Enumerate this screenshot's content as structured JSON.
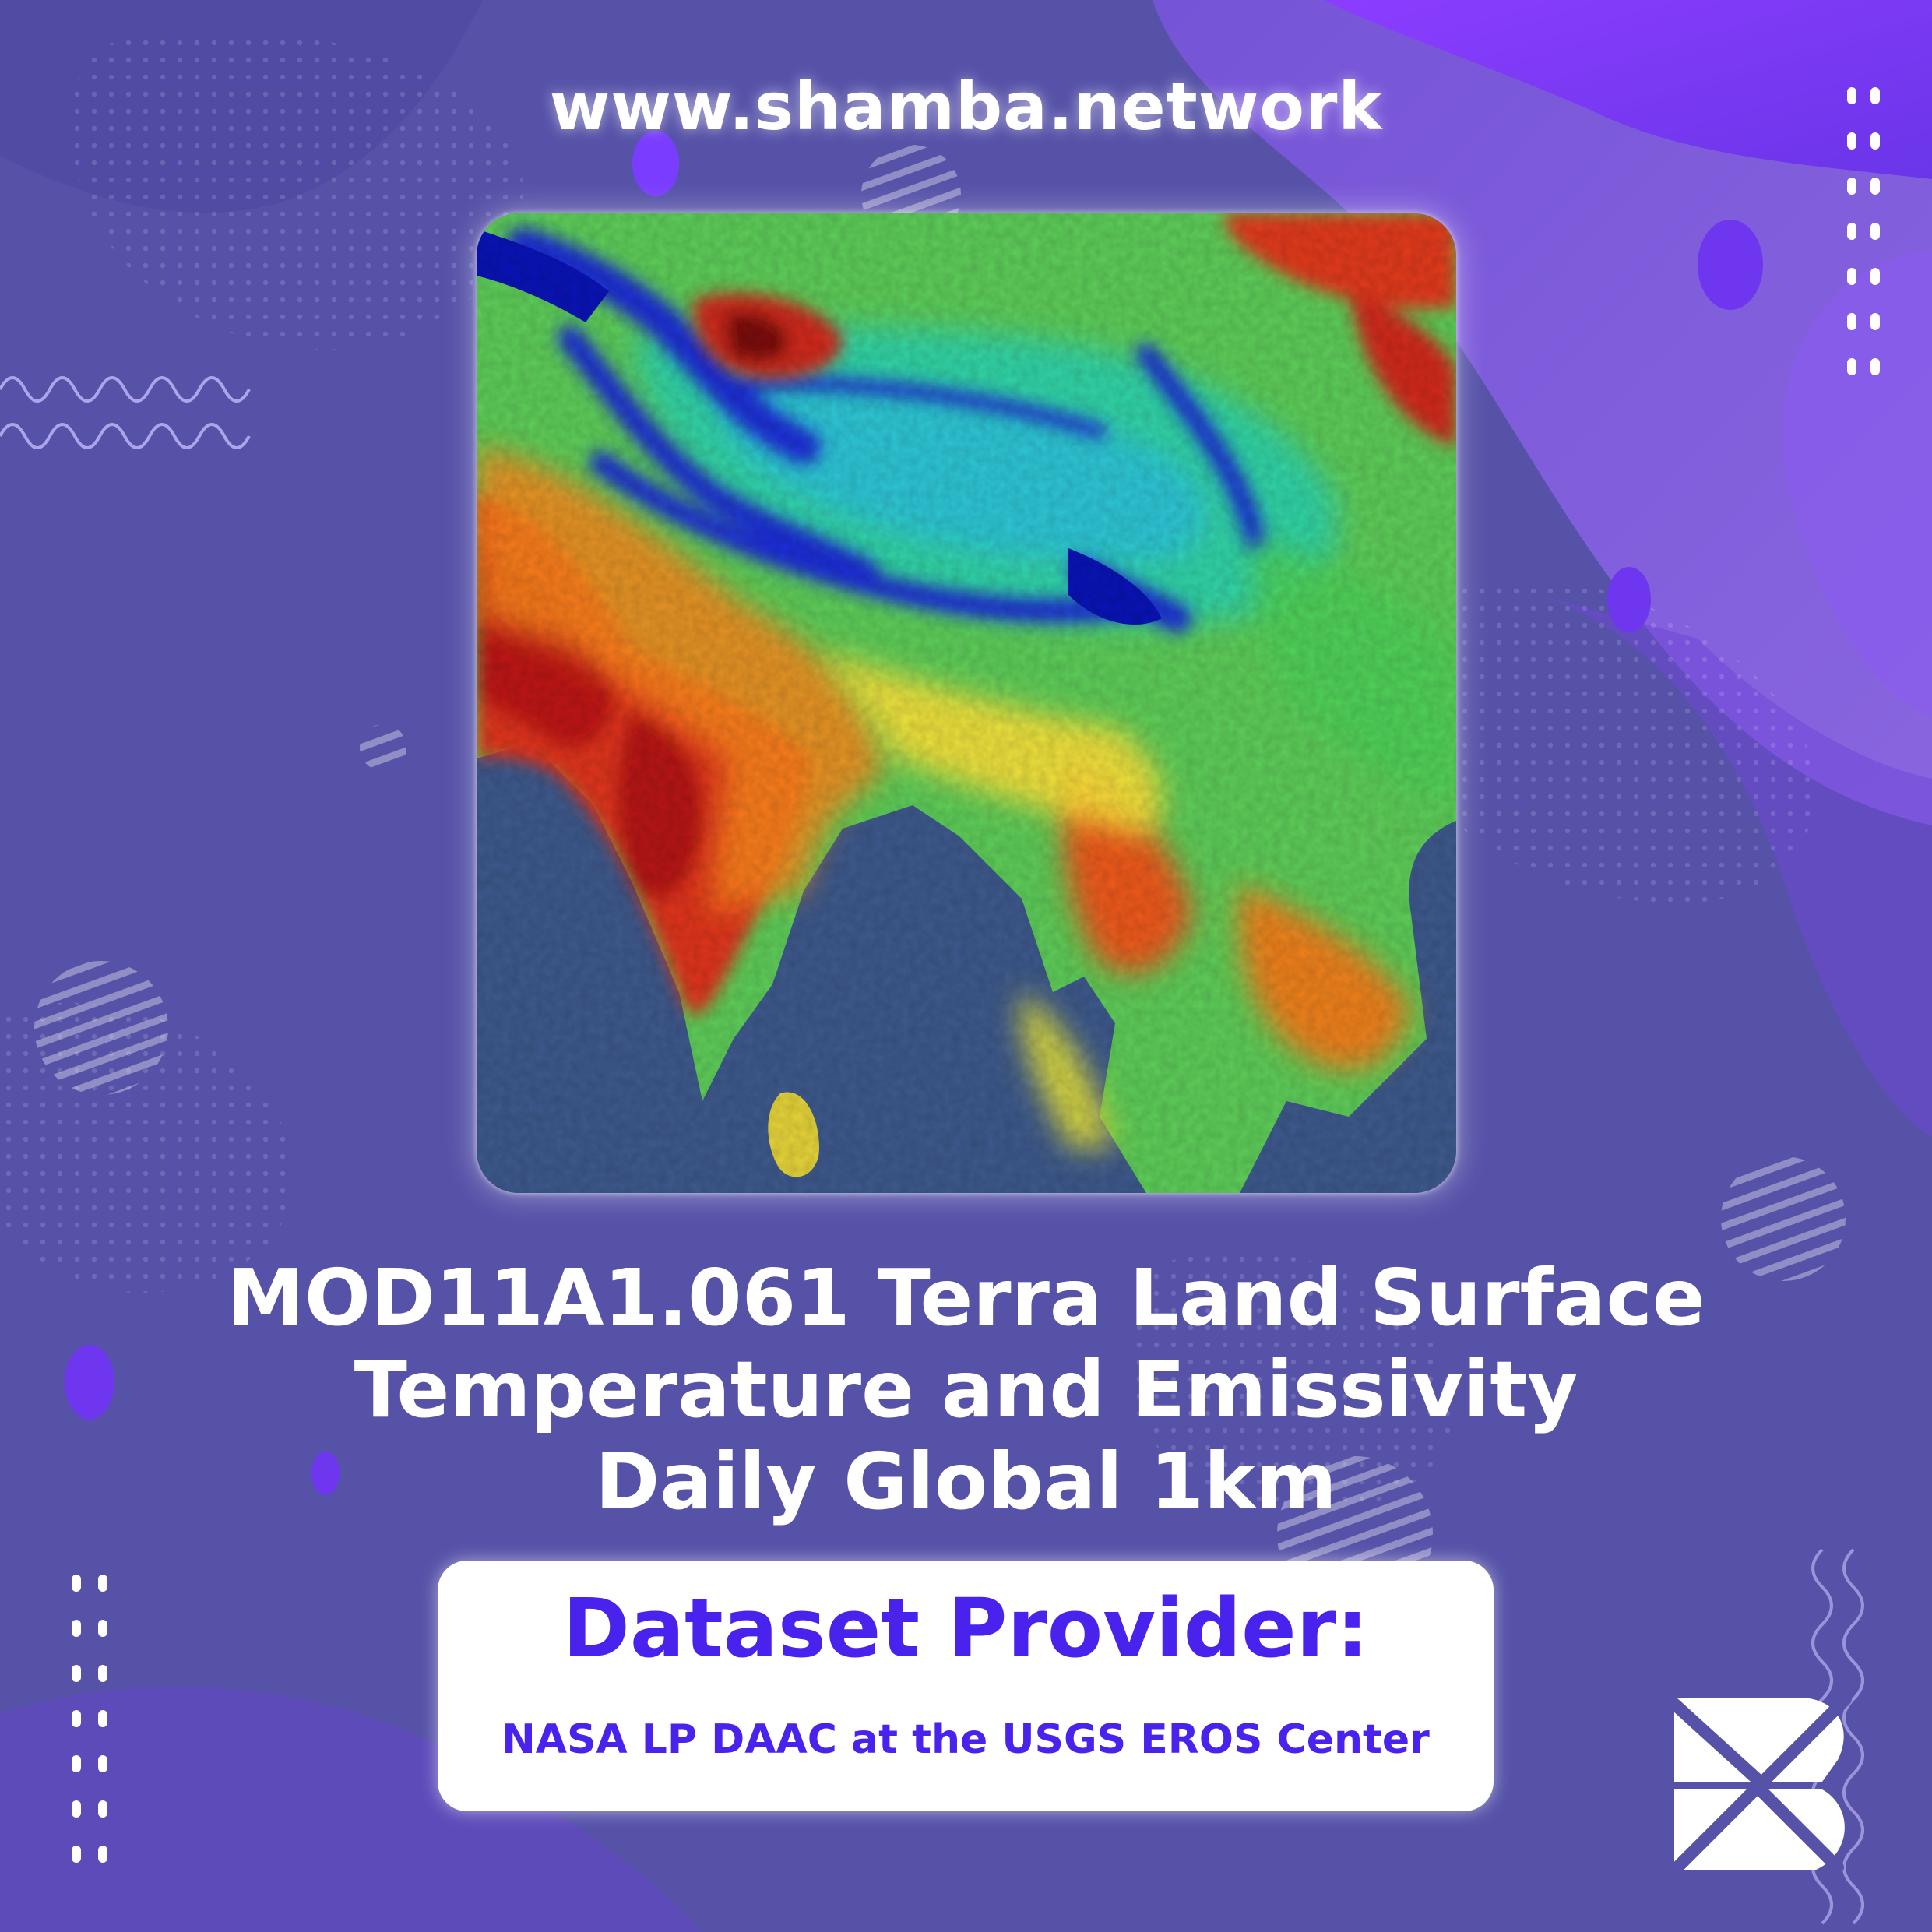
{
  "header": {
    "url": "www.shamba.network"
  },
  "map": {
    "image": "land-surface-temperature-map-south-asia"
  },
  "title": {
    "lines": [
      "MOD11A1.061 Terra Land Surface",
      "Temperature and Emissivity",
      "Daily Global 1km"
    ]
  },
  "provider": {
    "label": "Dataset Provider:",
    "name": "NASA LP DAAC at the USGS EROS Center"
  },
  "colors": {
    "background": "#5652a8",
    "accent": "#7b3cff",
    "provider_text": "#4a22ee",
    "box": "#ffffff"
  },
  "logo": {
    "icon": "shamba-logo-icon"
  }
}
